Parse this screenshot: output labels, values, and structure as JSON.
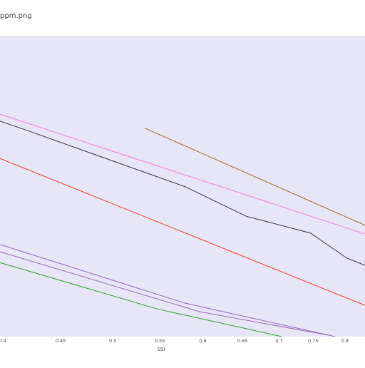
{
  "chart_data": {
    "type": "line",
    "title": "ppm.png",
    "x_label": "SSI",
    "xscale": "log",
    "xlim": [
      0.398,
      0.833
    ],
    "xticks": [
      0.4,
      0.45,
      0.5,
      0.55,
      0.6,
      0.65,
      0.7,
      0.75,
      0.8
    ],
    "ylim": [
      0,
      100
    ],
    "grid": false,
    "series": [
      {
        "color": "#3a2f3f",
        "x": [
          0.398,
          0.419,
          0.579,
          0.655,
          0.746,
          0.803,
          0.833
        ],
        "values": [
          71.6,
          68.7,
          49.8,
          40.0,
          34.4,
          26.1,
          23.7
        ]
      },
      {
        "color": "#ee7fd8",
        "x": [
          0.398,
          0.833
        ],
        "values": [
          73.9,
          34.1
        ]
      },
      {
        "color": "#9a6a2a",
        "x": [
          0.534,
          0.833
        ],
        "values": [
          69.2,
          37.0
        ]
      },
      {
        "color": "#f03a2a",
        "x": [
          0.398,
          0.833
        ],
        "values": [
          59.2,
          10.4
        ]
      },
      {
        "color": "#9467bd",
        "x": [
          0.398,
          0.579,
          0.784
        ],
        "values": [
          30.6,
          11.1,
          0
        ]
      },
      {
        "color": "#9a6ab0",
        "x": [
          0.398,
          0.596,
          0.773
        ],
        "values": [
          28.2,
          8.3,
          0.5
        ]
      },
      {
        "color": "#2ca02c",
        "x": [
          0.398,
          0.547,
          0.704
        ],
        "values": [
          24.6,
          9.2,
          0
        ]
      }
    ]
  }
}
